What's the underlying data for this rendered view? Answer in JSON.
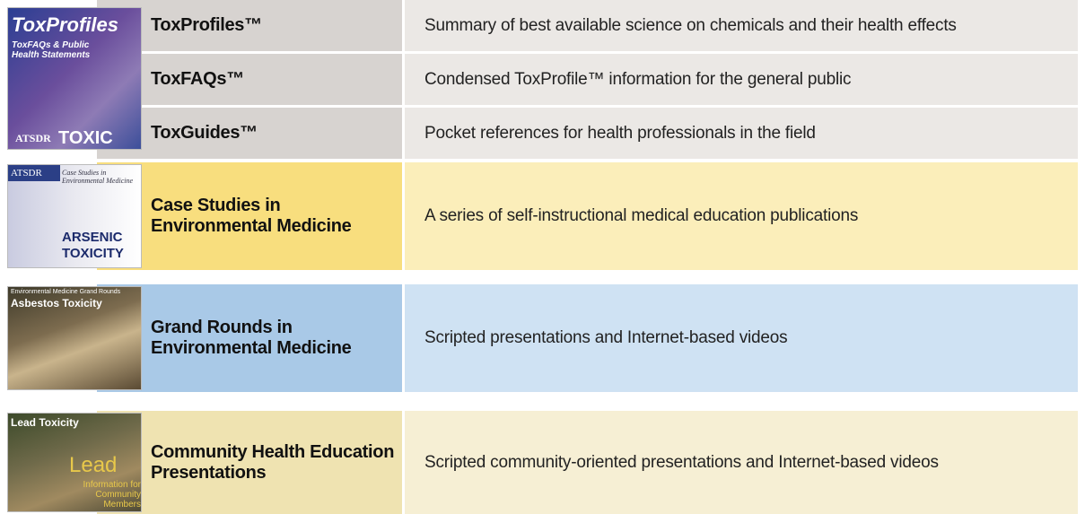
{
  "rows": [
    {
      "thumbnail": {
        "title": "ToxProfiles",
        "subtitle": "ToxFAQs & Public Health Statements",
        "footer": "ATSDR",
        "badge": "TOXIC"
      },
      "items": [
        {
          "title": "ToxProfiles™",
          "description": "Summary of best available science on chemicals and their health effects"
        },
        {
          "title": "ToxFAQs™",
          "description": "Condensed ToxProfile™ information for the general public"
        },
        {
          "title": "ToxGuides™",
          "description": "Pocket references for health professionals in the field"
        }
      ]
    },
    {
      "thumbnail": {
        "title": "ATSDR",
        "subtitle": "Case Studies in Environmental Medicine",
        "badge": "Arsenic Toxicity"
      },
      "items": [
        {
          "title": "Case Studies in Environmental Medicine",
          "description": "A series of self-instructional medical education publications"
        }
      ]
    },
    {
      "thumbnail": {
        "subtitle": "Environmental Medicine Grand Rounds",
        "title": "Asbestos Toxicity"
      },
      "items": [
        {
          "title": "Grand Rounds in Environmental Medicine",
          "description": "Scripted presentations and Internet-based videos"
        }
      ]
    },
    {
      "thumbnail": {
        "title": "Lead Toxicity",
        "badge": "Lead",
        "subtitle": "Information for Community Members"
      },
      "items": [
        {
          "title": "Community Health Education Presentations",
          "description": "Scripted community-oriented presentations and Internet-based videos"
        }
      ]
    }
  ]
}
